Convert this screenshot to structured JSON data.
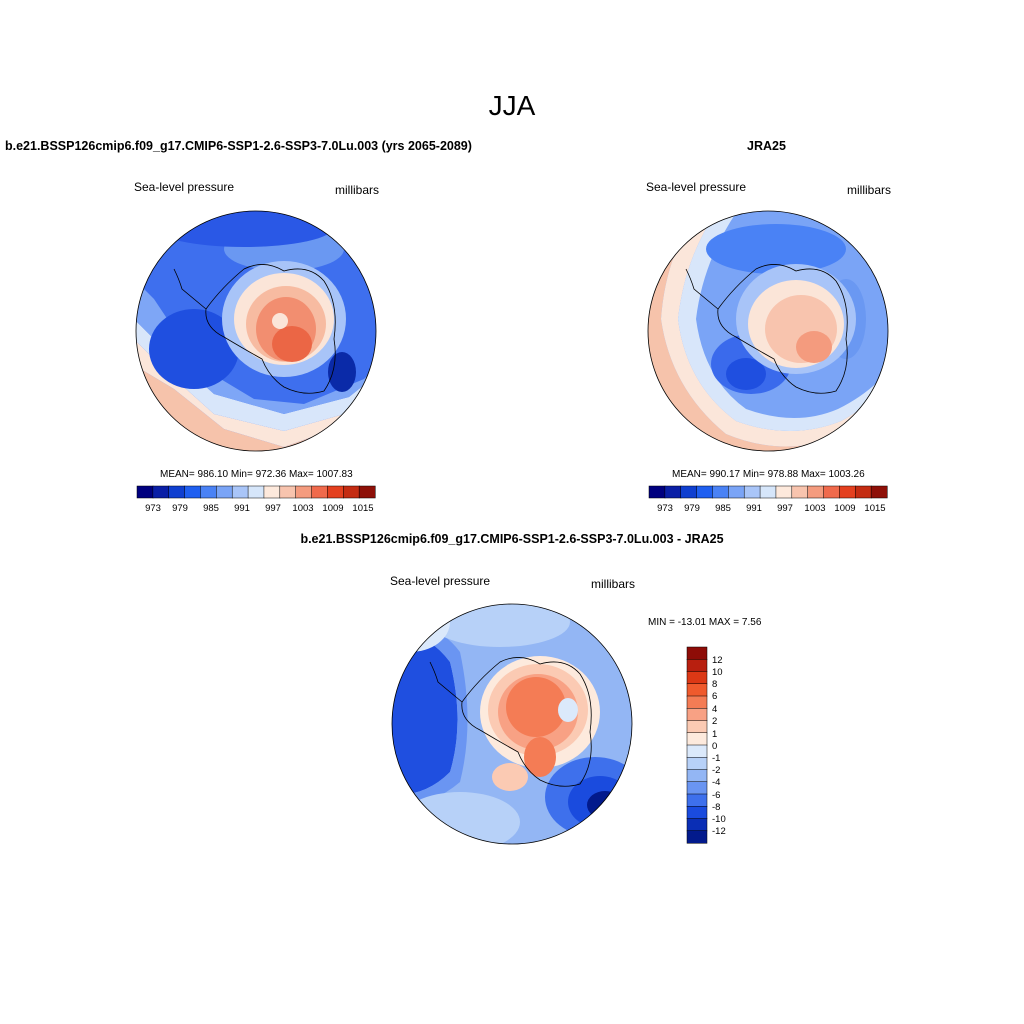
{
  "season": "JJA",
  "panels": [
    {
      "title": "b.e21.BSSP126cmip6.f09_g17.CMIP6-SSP1-2.6-SSP3-7.0Lu.003 (yrs 2065-2089)",
      "left_label": "Sea-level pressure",
      "right_label": "millibars",
      "stats": "MEAN= 986.10  Min= 972.36  Max= 1007.83",
      "colorbar_ticks": [
        "973",
        "979",
        "985",
        "991",
        "997",
        "1003",
        "1009",
        "1015"
      ]
    },
    {
      "title": "JRA25",
      "left_label": "Sea-level pressure",
      "right_label": "millibars",
      "stats": "MEAN= 990.17  Min= 978.88  Max= 1003.26",
      "colorbar_ticks": [
        "973",
        "979",
        "985",
        "991",
        "997",
        "1003",
        "1009",
        "1015"
      ]
    },
    {
      "title": "b.e21.BSSP126cmip6.f09_g17.CMIP6-SSP1-2.6-SSP3-7.0Lu.003 - JRA25",
      "left_label": "Sea-level pressure",
      "right_label": "millibars",
      "minmax": "MIN = -13.01 MAX =   7.56",
      "colorbar_ticks": [
        "12",
        "10",
        "8",
        "6",
        "4",
        "2",
        "1",
        "0",
        "-1",
        "-2",
        "-4",
        "-6",
        "-8",
        "-10",
        "-12"
      ]
    }
  ],
  "colors": {
    "abs_scale": [
      "#00007f",
      "#0a1fa6",
      "#0f3fd0",
      "#1f5ff0",
      "#4a82f5",
      "#7aa4f6",
      "#a9c5f8",
      "#d6e6fa",
      "#fde9dc",
      "#f8c4ae",
      "#f49b7e",
      "#f06a4c",
      "#e4401f",
      "#c42c12",
      "#8e1008"
    ],
    "diff_scale": [
      "#8e0c07",
      "#b81f0f",
      "#dc3815",
      "#ef5a2d",
      "#f47c55",
      "#f8a184",
      "#fbcab3",
      "#fdeadd",
      "#dbe9fb",
      "#b7d1f8",
      "#93b6f4",
      "#6a95f2",
      "#3e70ec",
      "#1a4bde",
      "#0a2eb5",
      "#021a8c"
    ]
  }
}
